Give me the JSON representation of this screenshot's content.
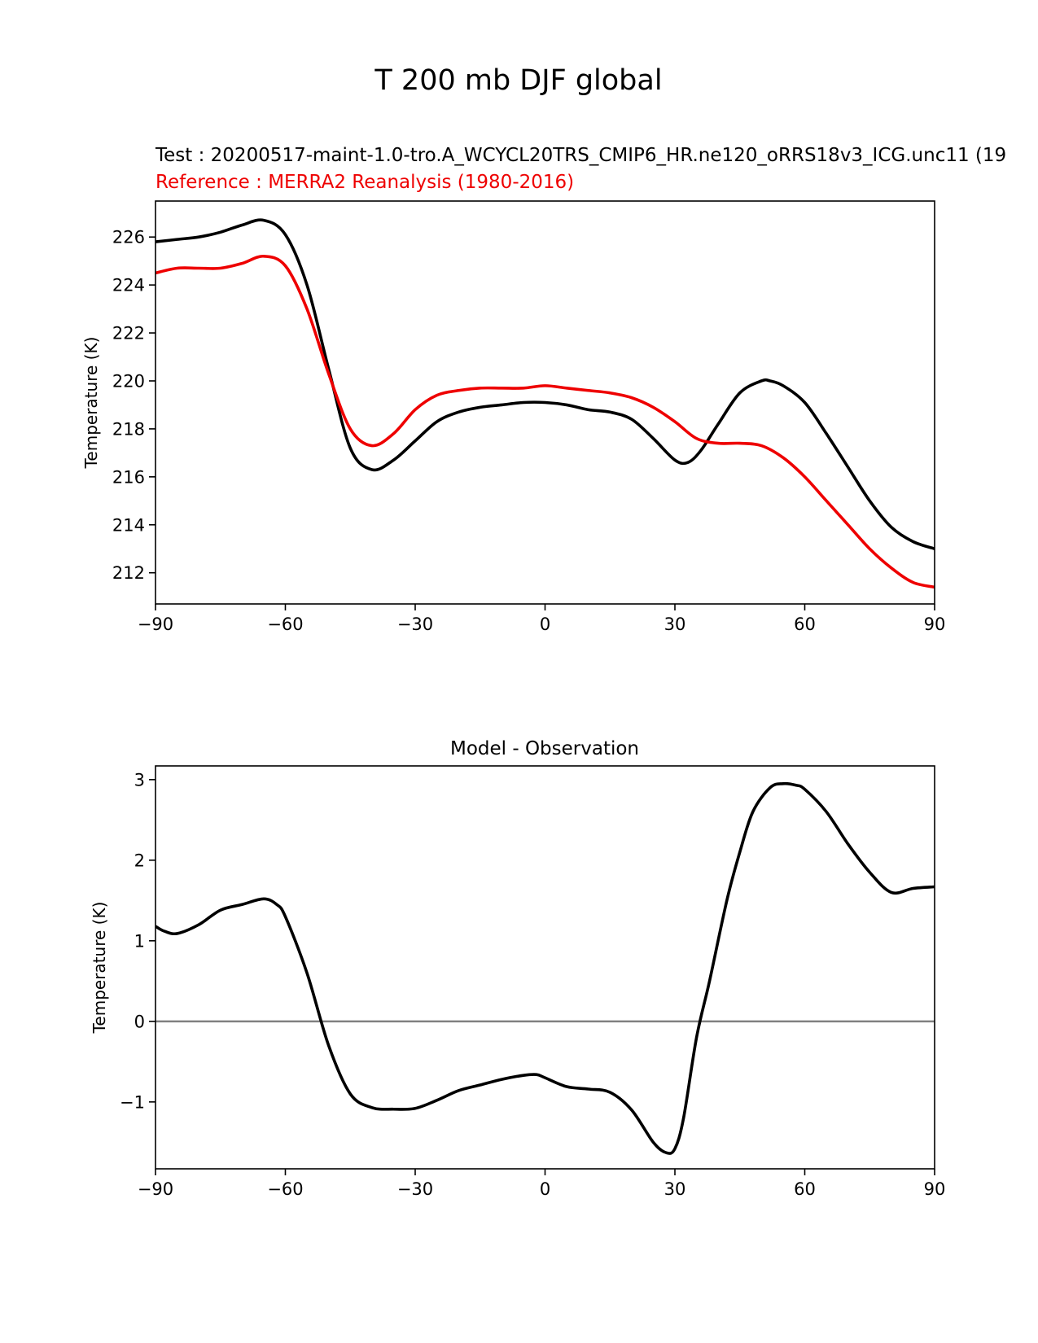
{
  "figure": {
    "suptitle": "T 200 mb DJF global"
  },
  "chart_data": [
    {
      "type": "line",
      "title_test": "Test : 20200517-maint-1.0-tro.A_WCYCL20TRS_CMIP6_HR.ne120_oRRS18v3_ICG.unc11 (19",
      "title_ref": "Reference : MERRA2 Reanalysis (1980-2016)",
      "xlabel": "",
      "ylabel": "Temperature (K)",
      "xlim": [
        -90,
        90
      ],
      "ylim": [
        210.7,
        227.5
      ],
      "xticks": [
        -90,
        -60,
        -30,
        0,
        30,
        60,
        90
      ],
      "xtick_labels": [
        "−90",
        "−60",
        "−30",
        "0",
        "30",
        "60",
        "90"
      ],
      "yticks": [
        212,
        214,
        216,
        218,
        220,
        222,
        224,
        226
      ],
      "ytick_labels": [
        "212",
        "214",
        "216",
        "218",
        "220",
        "222",
        "224",
        "226"
      ],
      "series": [
        {
          "name": "Test",
          "color": "#000000",
          "x": [
            -90,
            -85,
            -80,
            -75,
            -70,
            -65,
            -60,
            -55,
            -50,
            -45,
            -40,
            -35,
            -30,
            -25,
            -20,
            -15,
            -10,
            -5,
            0,
            5,
            10,
            15,
            20,
            25,
            30,
            33,
            36,
            40,
            45,
            50,
            52,
            55,
            60,
            65,
            70,
            75,
            80,
            85,
            90
          ],
          "values": [
            225.8,
            225.9,
            226.0,
            226.2,
            226.5,
            226.7,
            226.1,
            224.0,
            220.5,
            217.2,
            216.3,
            216.7,
            217.5,
            218.3,
            218.7,
            218.9,
            219.0,
            219.1,
            219.1,
            219.0,
            218.8,
            218.7,
            218.4,
            217.6,
            216.7,
            216.6,
            217.1,
            218.2,
            219.5,
            220.0,
            220.0,
            219.8,
            219.1,
            217.8,
            216.4,
            215.0,
            213.9,
            213.3,
            213.0
          ]
        },
        {
          "name": "Reference",
          "color": "#ee0000",
          "x": [
            -90,
            -85,
            -80,
            -75,
            -70,
            -65,
            -60,
            -55,
            -50,
            -45,
            -40,
            -35,
            -30,
            -25,
            -20,
            -15,
            -10,
            -5,
            0,
            5,
            10,
            15,
            20,
            25,
            30,
            35,
            40,
            45,
            50,
            55,
            60,
            65,
            70,
            75,
            80,
            85,
            90
          ],
          "values": [
            224.5,
            224.7,
            224.7,
            224.7,
            224.9,
            225.2,
            224.8,
            223.0,
            220.3,
            218.0,
            217.3,
            217.8,
            218.8,
            219.4,
            219.6,
            219.7,
            219.7,
            219.7,
            219.8,
            219.7,
            219.6,
            219.5,
            219.3,
            218.9,
            218.3,
            217.6,
            217.4,
            217.4,
            217.3,
            216.8,
            216.0,
            215.0,
            214.0,
            213.0,
            212.2,
            211.6,
            211.4
          ]
        }
      ]
    },
    {
      "type": "line",
      "title": "Model - Observation",
      "xlabel": "",
      "ylabel": "Temperature (K)",
      "xlim": [
        -90,
        90
      ],
      "ylim": [
        -1.83,
        3.17
      ],
      "xticks": [
        -90,
        -60,
        -30,
        0,
        30,
        60,
        90
      ],
      "xtick_labels": [
        "−90",
        "−60",
        "−30",
        "0",
        "30",
        "60",
        "90"
      ],
      "yticks": [
        -1,
        0,
        1,
        2,
        3
      ],
      "ytick_labels": [
        "−1",
        "0",
        "1",
        "2",
        "3"
      ],
      "zero_line": {
        "value": 0,
        "color": "#808080"
      },
      "series": [
        {
          "name": "Model - Observation",
          "color": "#000000",
          "x": [
            -90,
            -88,
            -85,
            -80,
            -75,
            -70,
            -65,
            -62,
            -60,
            -55,
            -50,
            -45,
            -40,
            -35,
            -30,
            -25,
            -20,
            -15,
            -10,
            -5,
            -2,
            0,
            5,
            10,
            15,
            20,
            25,
            28,
            30,
            32,
            35,
            38,
            42,
            45,
            48,
            52,
            55,
            58,
            60,
            65,
            70,
            75,
            80,
            85,
            90
          ],
          "values": [
            1.18,
            1.12,
            1.09,
            1.2,
            1.38,
            1.45,
            1.52,
            1.45,
            1.3,
            0.6,
            -0.3,
            -0.9,
            -1.07,
            -1.09,
            -1.08,
            -0.98,
            -0.86,
            -0.79,
            -0.72,
            -0.67,
            -0.66,
            -0.7,
            -0.81,
            -0.84,
            -0.88,
            -1.1,
            -1.5,
            -1.63,
            -1.58,
            -1.2,
            -0.2,
            0.5,
            1.5,
            2.1,
            2.6,
            2.9,
            2.95,
            2.93,
            2.88,
            2.6,
            2.2,
            1.85,
            1.6,
            1.65,
            1.67
          ]
        }
      ]
    }
  ]
}
